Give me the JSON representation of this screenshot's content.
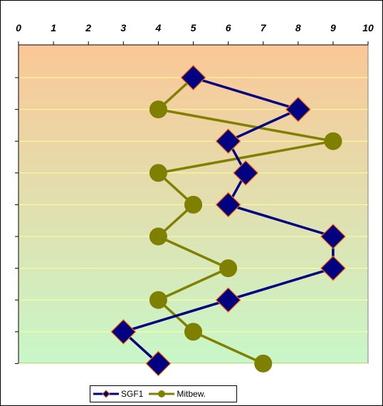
{
  "chart_data": {
    "type": "line",
    "orientation": "horizontal-values",
    "xlim": [
      0,
      10
    ],
    "x_ticks": [
      "0",
      "1",
      "2",
      "3",
      "4",
      "5",
      "6",
      "7",
      "8",
      "9",
      "10"
    ],
    "categories_count": 10,
    "grid": true,
    "legend_position": "bottom",
    "background_gradient": [
      "#fbc796",
      "#c8f7c8"
    ],
    "series": [
      {
        "name": "SGF1",
        "marker": "diamond",
        "line_color": "#000080",
        "marker_fill": "#000080",
        "marker_edge": "#ff6600",
        "values": [
          5,
          8,
          6,
          6.5,
          6,
          9,
          9,
          6,
          3,
          4
        ]
      },
      {
        "name": "Mitbew.",
        "marker": "circle",
        "line_color": "#808000",
        "marker_fill": "#808000",
        "marker_edge": "#808000",
        "values": [
          5,
          4,
          9,
          4,
          5,
          4,
          6,
          4,
          5,
          7
        ]
      }
    ]
  }
}
